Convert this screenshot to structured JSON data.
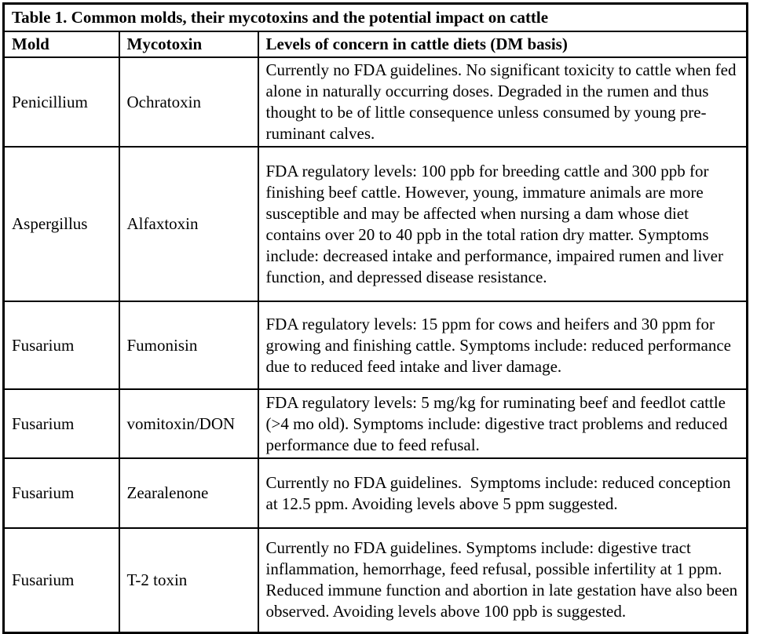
{
  "table": {
    "title": "Table 1. Common molds, their mycotoxins and the potential impact on cattle",
    "columns": {
      "mold": "Mold",
      "mycotoxin": "Mycotoxin",
      "levels": "Levels of concern in cattle diets (DM basis)"
    },
    "rows": [
      {
        "mold": "Penicillium",
        "mycotoxin": "Ochratoxin",
        "levels": "Currently no FDA guidelines. No significant toxicity to cattle when fed alone in naturally occurring doses. Degraded in the rumen and thus thought to be of little consequence unless consumed by young pre-ruminant calves."
      },
      {
        "mold": "Aspergillus",
        "mycotoxin": "Alfaxtoxin",
        "levels": "FDA regulatory levels: 100 ppb for breeding cattle and 300 ppb for finishing beef cattle. However, young, immature animals are more susceptible and may be affected when nursing a dam whose diet contains over 20 to 40 ppb in the total ration dry matter. Symptoms include: decreased intake and performance, impaired rumen and liver function, and depressed disease resistance."
      },
      {
        "mold": "Fusarium",
        "mycotoxin": "Fumonisin",
        "levels": "FDA regulatory levels: 15 ppm for cows and heifers and 30 ppm for growing and finishing cattle. Symptoms include: reduced performance due to reduced feed intake and liver damage."
      },
      {
        "mold": "Fusarium",
        "mycotoxin": "vomitoxin/DON",
        "levels": "FDA regulatory levels: 5 mg/kg for ruminating beef and feedlot cattle (>4 mo old). Symptoms include: digestive tract problems and reduced performance due to feed refusal."
      },
      {
        "mold": "Fusarium",
        "mycotoxin": "Zearalenone",
        "levels": "Currently no FDA guidelines.  Symptoms include: reduced conception at 12.5 ppm. Avoiding levels above 5 ppm suggested."
      },
      {
        "mold": "Fusarium",
        "mycotoxin": "T-2 toxin",
        "levels": "Currently no FDA guidelines. Symptoms include: digestive tract inflammation, hemorrhage, feed refusal, possible infertility at 1 ppm. Reduced immune function and abortion in late gestation have also been observed. Avoiding levels above 100 ppb is suggested."
      }
    ],
    "colors": {
      "border": "#000000",
      "background": "#ffffff",
      "text": "#000000"
    }
  }
}
